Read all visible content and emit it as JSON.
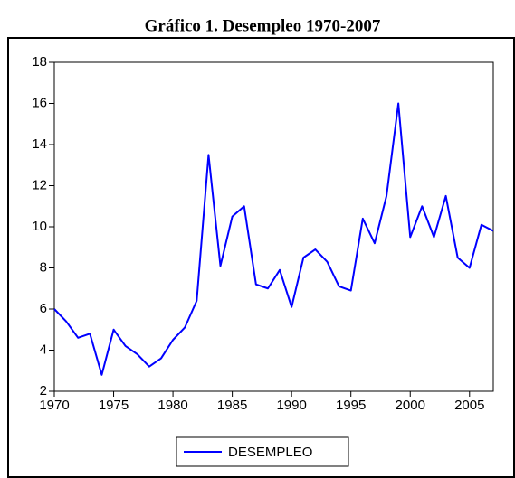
{
  "chart_data": {
    "type": "line",
    "title": "Gráfico 1. Desempleo 1970-2007",
    "x": [
      1970,
      1971,
      1972,
      1973,
      1974,
      1975,
      1976,
      1977,
      1978,
      1979,
      1980,
      1981,
      1982,
      1983,
      1984,
      1985,
      1986,
      1987,
      1988,
      1989,
      1990,
      1991,
      1992,
      1993,
      1994,
      1995,
      1996,
      1997,
      1998,
      1999,
      2000,
      2001,
      2002,
      2003,
      2004,
      2005,
      2006,
      2007
    ],
    "series": [
      {
        "name": "DESEMPLEO",
        "color": "#0000ff",
        "values": [
          6.0,
          5.4,
          4.6,
          4.8,
          2.8,
          5.0,
          4.2,
          3.8,
          3.2,
          3.6,
          4.5,
          5.1,
          6.4,
          13.5,
          8.1,
          10.5,
          11.0,
          7.2,
          7.0,
          7.9,
          6.1,
          8.5,
          8.9,
          8.3,
          7.1,
          6.9,
          10.4,
          9.2,
          11.5,
          16.0,
          9.5,
          11.0,
          9.5,
          11.5,
          8.5,
          8.0,
          10.1,
          9.8
        ]
      }
    ],
    "xlim": [
      1970,
      2007
    ],
    "xticks": [
      1970,
      1975,
      1980,
      1985,
      1990,
      1995,
      2000,
      2005
    ],
    "ylim": [
      2,
      18
    ],
    "yticks": [
      2,
      4,
      6,
      8,
      10,
      12,
      14,
      16,
      18
    ],
    "grid": false
  }
}
